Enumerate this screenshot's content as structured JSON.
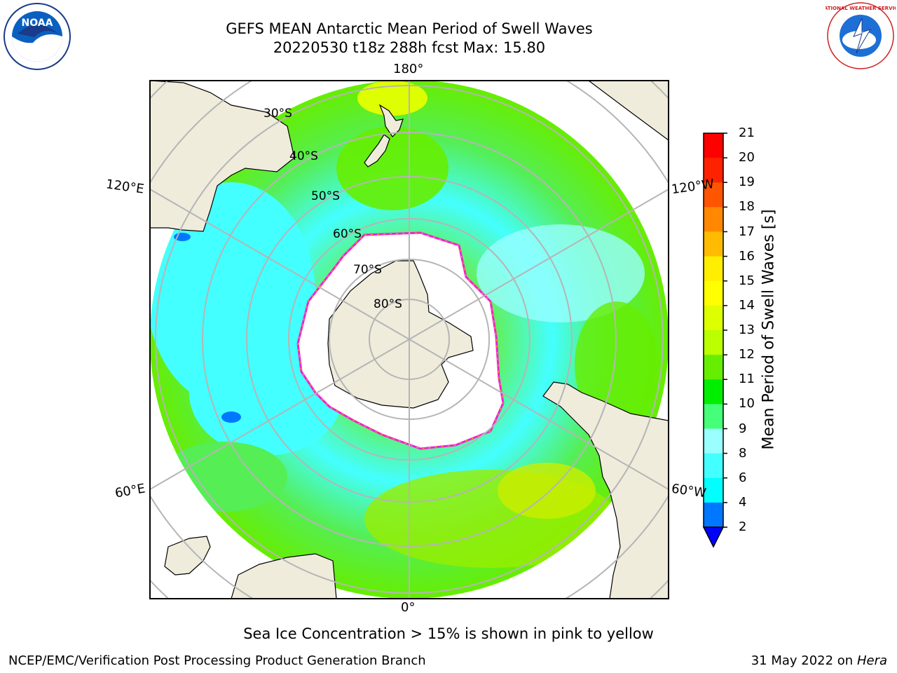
{
  "header": {
    "title_line1": "GEFS MEAN Antarctic Mean Period of Swell Waves",
    "title_line2": "20220530 t18z 288h fcst   Max: 15.80"
  },
  "map": {
    "longitude_labels": {
      "top": "180°",
      "bottom": "0°",
      "left_upper": "120°E",
      "left_lower": "60°E",
      "right_upper": "120°W",
      "right_lower": "60°W"
    },
    "latitude_labels": [
      "30°S",
      "40°S",
      "50°S",
      "60°S",
      "70°S",
      "80°S"
    ],
    "colors": {
      "land": "#efecdc",
      "ice": "#ffffff",
      "grid": "#b5b5b5",
      "ice_edge": "#ee22cc"
    }
  },
  "colorbar": {
    "label": "Mean Period of Swell Waves [s]",
    "ticks": [
      "2",
      "4",
      "6",
      "8",
      "9",
      "10",
      "11",
      "12",
      "13",
      "14",
      "15",
      "16",
      "17",
      "18",
      "19",
      "20",
      "21"
    ],
    "colors": [
      "#0000ff",
      "#0077ff",
      "#00ffff",
      "#44ffff",
      "#99ffff",
      "#44ff77",
      "#00ee00",
      "#66ee00",
      "#bbff00",
      "#ddff00",
      "#ffff00",
      "#ffee00",
      "#ffbb00",
      "#ff8800",
      "#ff5500",
      "#ff2200",
      "#ff0000"
    ]
  },
  "note": "Sea Ice Concentration > 15% is shown in pink to yellow",
  "footer": {
    "left": "NCEP/EMC/Verification Post Processing Product Generation Branch",
    "right_date": "31 May 2022 on",
    "right_host": "Hera"
  },
  "logos": {
    "left_text": "NOAA",
    "right_text": "NATIONAL WEATHER SERVICE"
  }
}
